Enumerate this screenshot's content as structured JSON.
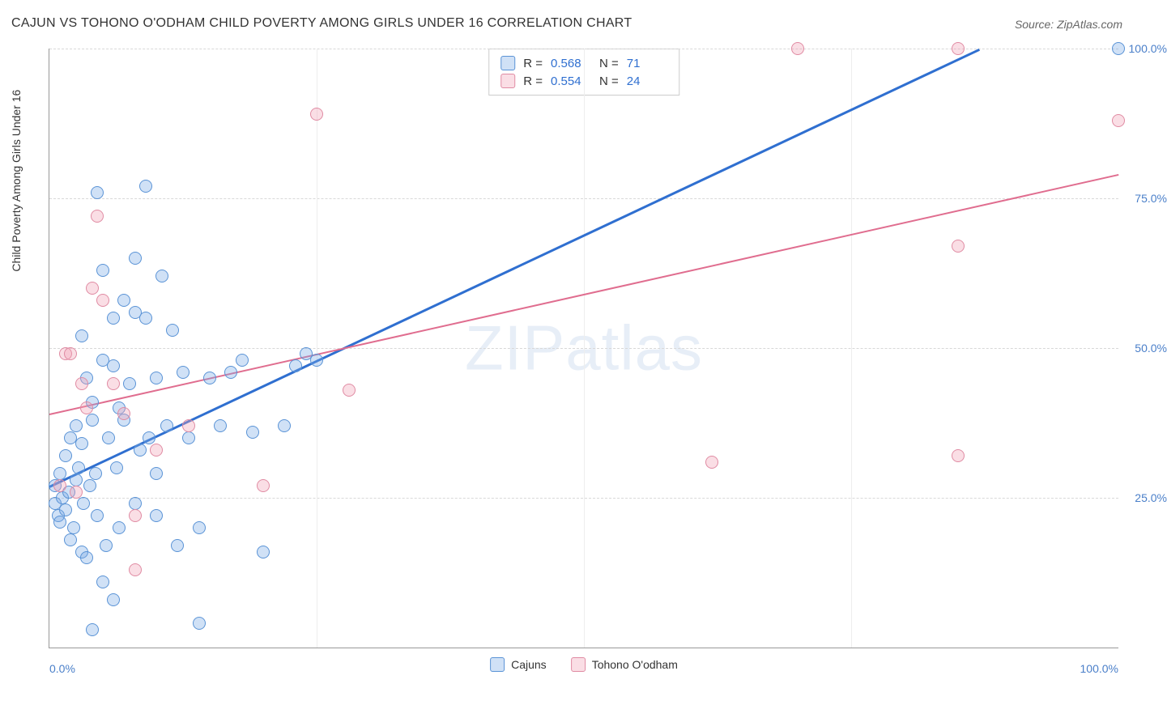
{
  "title": "CAJUN VS TOHONO O'ODHAM CHILD POVERTY AMONG GIRLS UNDER 16 CORRELATION CHART",
  "source": "Source: ZipAtlas.com",
  "watermark": "ZIPatlas",
  "y_axis_label": "Child Poverty Among Girls Under 16",
  "chart": {
    "type": "scatter",
    "xlim": [
      0,
      100
    ],
    "ylim": [
      0,
      100
    ],
    "y_ticks": [
      25,
      50,
      75,
      100
    ],
    "y_tick_labels": [
      "25.0%",
      "50.0%",
      "75.0%",
      "100.0%"
    ],
    "x_minor_grid": [
      25,
      50,
      75
    ],
    "x_tick_left": "0.0%",
    "x_tick_right": "100.0%",
    "background_color": "#ffffff",
    "grid_color": "#d8d8d8",
    "point_radius": 8,
    "series": [
      {
        "name": "Cajuns",
        "fill": "rgba(120,170,230,0.35)",
        "stroke": "#5a93d6",
        "R": "0.568",
        "N": "71",
        "trend": {
          "x1": 0,
          "y1": 27,
          "x2": 87,
          "y2": 100,
          "color": "#2f6fd0",
          "width": 2.5
        },
        "points": [
          [
            0.5,
            27
          ],
          [
            0.5,
            24
          ],
          [
            0.8,
            22
          ],
          [
            1,
            21
          ],
          [
            1,
            29
          ],
          [
            1.2,
            25
          ],
          [
            1.5,
            23
          ],
          [
            1.5,
            32
          ],
          [
            1.8,
            26
          ],
          [
            2,
            18
          ],
          [
            2,
            35
          ],
          [
            2.3,
            20
          ],
          [
            2.5,
            37
          ],
          [
            2.5,
            28
          ],
          [
            2.7,
            30
          ],
          [
            3,
            16
          ],
          [
            3,
            34
          ],
          [
            3.2,
            24
          ],
          [
            3.5,
            15
          ],
          [
            3.5,
            45
          ],
          [
            3.8,
            27
          ],
          [
            4,
            41
          ],
          [
            4,
            38
          ],
          [
            4.3,
            29
          ],
          [
            4.5,
            22
          ],
          [
            4.5,
            76
          ],
          [
            5,
            11
          ],
          [
            5,
            48
          ],
          [
            5.3,
            17
          ],
          [
            5.5,
            35
          ],
          [
            6,
            47
          ],
          [
            6,
            55
          ],
          [
            6.3,
            30
          ],
          [
            6.5,
            20
          ],
          [
            7,
            58
          ],
          [
            7,
            38
          ],
          [
            7.5,
            44
          ],
          [
            8,
            56
          ],
          [
            8,
            65
          ],
          [
            8.5,
            33
          ],
          [
            9,
            77
          ],
          [
            9.3,
            35
          ],
          [
            10,
            45
          ],
          [
            10,
            29
          ],
          [
            10.5,
            62
          ],
          [
            11,
            37
          ],
          [
            11.5,
            53
          ],
          [
            12,
            17
          ],
          [
            12.5,
            46
          ],
          [
            13,
            35
          ],
          [
            14,
            4
          ],
          [
            14,
            20
          ],
          [
            15,
            45
          ],
          [
            16,
            37
          ],
          [
            17,
            46
          ],
          [
            18,
            48
          ],
          [
            19,
            36
          ],
          [
            20,
            16
          ],
          [
            22,
            37
          ],
          [
            23,
            47
          ],
          [
            24,
            49
          ],
          [
            25,
            48
          ],
          [
            4,
            3
          ],
          [
            6,
            8
          ],
          [
            8,
            24
          ],
          [
            10,
            22
          ],
          [
            6.5,
            40
          ],
          [
            5,
            63
          ],
          [
            3,
            52
          ],
          [
            9,
            55
          ],
          [
            100,
            100
          ]
        ]
      },
      {
        "name": "Tohono O'odham",
        "fill": "rgba(240,160,180,0.35)",
        "stroke": "#e08ba3",
        "R": "0.554",
        "N": "24",
        "trend": {
          "x1": 0,
          "y1": 39,
          "x2": 100,
          "y2": 79,
          "color": "#e06d8f",
          "width": 2
        },
        "points": [
          [
            1,
            27
          ],
          [
            1.5,
            49
          ],
          [
            2,
            49
          ],
          [
            2.5,
            26
          ],
          [
            3,
            44
          ],
          [
            3.5,
            40
          ],
          [
            4,
            60
          ],
          [
            4.5,
            72
          ],
          [
            5,
            58
          ],
          [
            6,
            44
          ],
          [
            7,
            39
          ],
          [
            8,
            22
          ],
          [
            8,
            13
          ],
          [
            10,
            33
          ],
          [
            13,
            37
          ],
          [
            20,
            27
          ],
          [
            25,
            89
          ],
          [
            28,
            43
          ],
          [
            62,
            31
          ],
          [
            70,
            100
          ],
          [
            85,
            67
          ],
          [
            85,
            32
          ],
          [
            85,
            100
          ],
          [
            100,
            88
          ]
        ]
      }
    ]
  },
  "stats_legend": {
    "r_label": "R =",
    "n_label": "N ="
  },
  "colors": {
    "title": "#333333",
    "axis_value": "#4a7fc9"
  }
}
